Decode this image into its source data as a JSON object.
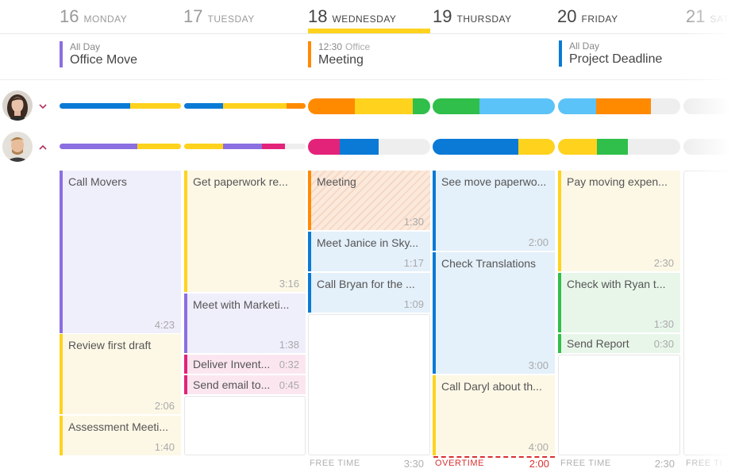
{
  "days": [
    {
      "num": "16",
      "name": "MONDAY"
    },
    {
      "num": "17",
      "name": "TUESDAY"
    },
    {
      "num": "18",
      "name": "WEDNESDAY"
    },
    {
      "num": "19",
      "name": "THURSDAY"
    },
    {
      "num": "20",
      "name": "FRIDAY"
    },
    {
      "num": "21",
      "name": "SATU"
    }
  ],
  "allday": [
    {
      "tag": "All Day",
      "sub": "",
      "title": "Office Move",
      "color": "#8b6fe0"
    },
    {
      "tag": "12:30",
      "sub": "Office",
      "title": "Meeting",
      "color": "#ff8a00"
    },
    {
      "tag": "All Day",
      "sub": "",
      "title": "Project Deadline",
      "color": "#0a7ad6"
    }
  ],
  "events": {
    "mon": [
      {
        "title": "Call Movers",
        "dur": "4:23"
      },
      {
        "title": "Review first draft",
        "dur": "2:06"
      },
      {
        "title": "Assessment Meeti...",
        "dur": "1:40"
      }
    ],
    "tue": [
      {
        "title": "Get paperwork re...",
        "dur": "3:16"
      },
      {
        "title": "Meet with Marketi...",
        "dur": "1:38"
      },
      {
        "title": "Deliver Invent...",
        "dur": "0:32"
      },
      {
        "title": "Send email to...",
        "dur": "0:45"
      }
    ],
    "wed": [
      {
        "title": "Meeting",
        "dur": "1:30"
      },
      {
        "title": "Meet Janice in Sky...",
        "dur": "1:17"
      },
      {
        "title": "Call Bryan for the ...",
        "dur": "1:09"
      }
    ],
    "thu": [
      {
        "title": "See move paperwo...",
        "dur": "2:00"
      },
      {
        "title": "Check Translations",
        "dur": "3:00"
      },
      {
        "title": "Call Daryl about th...",
        "dur": "4:00"
      }
    ],
    "fri": [
      {
        "title": "Pay moving expen...",
        "dur": "2:30"
      },
      {
        "title": "Check with Ryan t...",
        "dur": "1:30"
      },
      {
        "title": "Send Report",
        "dur": "0:30"
      }
    ]
  },
  "footer": {
    "wed": {
      "label": "FREE TIME",
      "value": "3:30"
    },
    "thu": {
      "label": "OVERTIME",
      "value": "2:00"
    },
    "fri": {
      "label": "FREE TIME",
      "value": "2:30"
    },
    "sat": {
      "label": "FREE TI"
    }
  },
  "colors": {
    "purple": "#8b6fe0",
    "yellow": "#ffd21e",
    "blue": "#0a7ad6",
    "orange": "#ff8a00",
    "pink": "#e3237a",
    "green": "#2fbf4a",
    "lightblue": "#5bc3f7",
    "grey": "#eeeeee",
    "overtime": "#d93030"
  }
}
